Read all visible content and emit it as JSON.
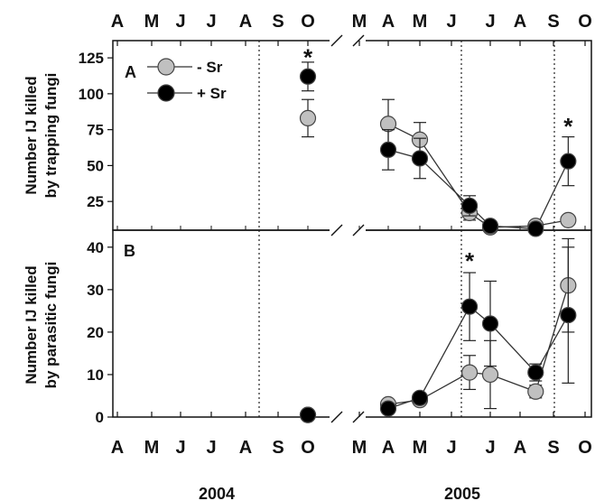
{
  "chart_data": [
    {
      "type": "scatter",
      "panel_label": "A",
      "ylabel_lines": [
        "Number IJ killed",
        "by trapping fungi"
      ],
      "yticks": [
        25,
        50,
        75,
        100,
        125
      ],
      "ylim": [
        5,
        137
      ],
      "x_month_labels_top": [
        "A",
        "M",
        "J",
        "J",
        "A",
        "S",
        "O",
        "M",
        "A",
        "M",
        "J",
        "J",
        "A",
        "S",
        "O"
      ],
      "legend": {
        "position": "top-left",
        "entries": [
          "- Sr",
          "+ Sr"
        ]
      },
      "series": [
        {
          "name": "- Sr",
          "color": "#c0c0c0",
          "segments": [
            [
              {
                "x": "2004-10",
                "y": 83,
                "err": 13
              }
            ],
            [
              {
                "x": "2005-04",
                "y": 79,
                "err": 17
              },
              {
                "x": "2005-05",
                "y": 68,
                "err": 12
              },
              {
                "x": "2005-06-15",
                "y": 17,
                "err": 5
              },
              {
                "x": "2005-07",
                "y": 7,
                "err": 2
              },
              {
                "x": "2005-08-15",
                "y": 8,
                "err": 3
              },
              {
                "x": "2005-09-15",
                "y": 12,
                "err": 3
              }
            ]
          ]
        },
        {
          "name": "+ Sr",
          "color": "#000000",
          "segments": [
            [
              {
                "x": "2004-10",
                "y": 112,
                "err": 10
              }
            ],
            [
              {
                "x": "2005-04",
                "y": 61,
                "err": 14
              },
              {
                "x": "2005-05",
                "y": 55,
                "err": 14
              },
              {
                "x": "2005-06-15",
                "y": 22,
                "err": 7
              },
              {
                "x": "2005-07",
                "y": 8,
                "err": 2
              },
              {
                "x": "2005-08-15",
                "y": 6,
                "err": 2
              },
              {
                "x": "2005-09-15",
                "y": 53,
                "err": 17
              }
            ]
          ]
        }
      ],
      "annotations": [
        {
          "text": "*",
          "x": "2004-10",
          "y": 126
        },
        {
          "text": "*",
          "x": "2005-09-15",
          "y": 78
        }
      ]
    },
    {
      "type": "scatter",
      "panel_label": "B",
      "ylabel_lines": [
        "Number IJ killed",
        "by parasitic fungi"
      ],
      "yticks": [
        0,
        10,
        20,
        30,
        40
      ],
      "ylim": [
        0,
        44
      ],
      "x_month_labels_bottom": [
        "A",
        "M",
        "J",
        "J",
        "A",
        "S",
        "O",
        "M",
        "A",
        "M",
        "J",
        "J",
        "A",
        "S",
        "O"
      ],
      "year_labels": [
        "2004",
        "2005"
      ],
      "series": [
        {
          "name": "- Sr",
          "color": "#c0c0c0",
          "segments": [
            [
              {
                "x": "2004-10",
                "y": 0.5,
                "err": 0.4
              }
            ],
            [
              {
                "x": "2005-04",
                "y": 3,
                "err": 1
              },
              {
                "x": "2005-05",
                "y": 4,
                "err": 1
              },
              {
                "x": "2005-06-15",
                "y": 10.5,
                "err": 4
              },
              {
                "x": "2005-07",
                "y": 10,
                "err": 8
              },
              {
                "x": "2005-08-15",
                "y": 6,
                "err": 1.5
              },
              {
                "x": "2005-09-15",
                "y": 31,
                "err": 11
              }
            ]
          ]
        },
        {
          "name": "+ Sr",
          "color": "#000000",
          "segments": [
            [
              {
                "x": "2004-10",
                "y": 0.5,
                "err": 0.4
              }
            ],
            [
              {
                "x": "2005-04",
                "y": 2,
                "err": 1
              },
              {
                "x": "2005-05",
                "y": 4.5,
                "err": 1
              },
              {
                "x": "2005-06-15",
                "y": 26,
                "err": 8
              },
              {
                "x": "2005-07",
                "y": 22,
                "err": 10
              },
              {
                "x": "2005-08-15",
                "y": 10.5,
                "err": 2
              },
              {
                "x": "2005-09-15",
                "y": 24,
                "err": 16
              }
            ]
          ]
        }
      ],
      "annotations": [
        {
          "text": "*",
          "x": "2005-06-15",
          "y": 37
        }
      ]
    }
  ]
}
